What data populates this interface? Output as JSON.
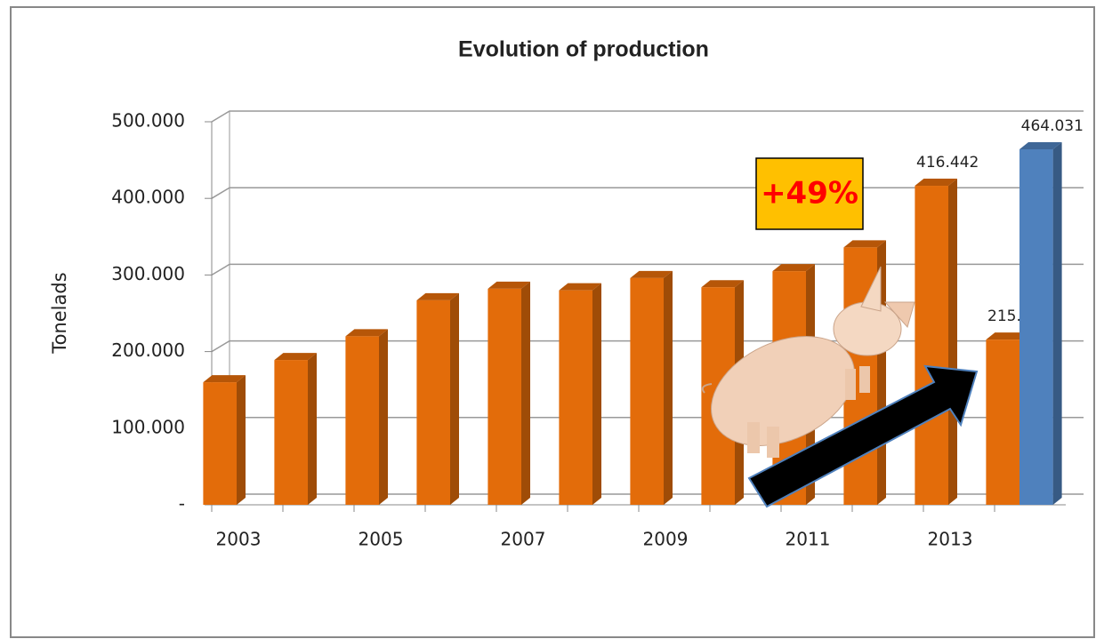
{
  "chart_data": {
    "type": "bar3d",
    "title": "Evolution of production",
    "y_label": "Tonelads",
    "annotation": "+49%",
    "categories": [
      "2003",
      null,
      "2005",
      null,
      "2007",
      null,
      "2009",
      null,
      "2011",
      null,
      "2013",
      null
    ],
    "series": [
      {
        "color": "#e36c0a",
        "values": [
          160000,
          189000,
          220000,
          267000,
          282000,
          280000,
          296000,
          284000,
          305000,
          336000,
          416442,
          215640
        ],
        "value_labels": [
          null,
          null,
          null,
          null,
          null,
          null,
          null,
          null,
          null,
          null,
          "416.442",
          "215.640"
        ]
      },
      {
        "color": "#4f81bd",
        "values": [
          null,
          null,
          null,
          null,
          null,
          null,
          null,
          null,
          null,
          null,
          null,
          464031
        ],
        "value_labels": [
          null,
          null,
          null,
          null,
          null,
          null,
          null,
          null,
          null,
          null,
          null,
          "464.031"
        ]
      }
    ],
    "ylim": [
      0,
      500000
    ],
    "yticks": [
      {
        "value": 0,
        "label": "-"
      },
      {
        "value": 100000,
        "label": "100.000"
      },
      {
        "value": 200000,
        "label": "200.000"
      },
      {
        "value": 300000,
        "label": "300.000"
      },
      {
        "value": 400000,
        "label": "400.000"
      },
      {
        "value": 500000,
        "label": "500.000"
      }
    ],
    "grid": true
  }
}
